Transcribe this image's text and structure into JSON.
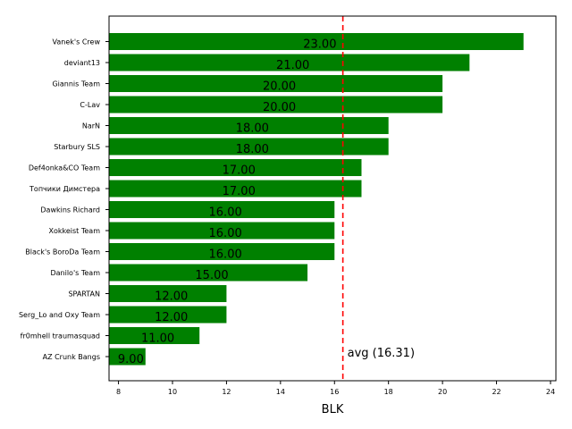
{
  "chart_data": {
    "type": "bar",
    "orientation": "horizontal",
    "categories": [
      "Vanek's Crew",
      "deviant13",
      "Giannis Team",
      "C-Lav",
      "NarN",
      "Starbury SLS",
      "Def4onka&CO Team",
      "Топчики Димстера",
      "Dawkins Richard",
      "Xokkeist Team",
      "Black's BoroDa Team",
      "Danilo's Team",
      "SPARTAN",
      "Serg_Lo and Oxy Team",
      "fr0mhell traumasquad",
      "AZ Crunk Bangs"
    ],
    "values": [
      23,
      21,
      20,
      20,
      18,
      18,
      17,
      17,
      16,
      16,
      16,
      15,
      12,
      12,
      11,
      9
    ],
    "value_labels": [
      "23.00",
      "21.00",
      "20.00",
      "20.00",
      "18.00",
      "18.00",
      "17.00",
      "17.00",
      "16.00",
      "16.00",
      "16.00",
      "15.00",
      "12.00",
      "12.00",
      "11.00",
      "9.00"
    ],
    "xlabel": "BLK",
    "xlim": [
      7.65,
      24.2
    ],
    "xticks": [
      8,
      10,
      12,
      14,
      16,
      18,
      20,
      22,
      24
    ],
    "grid": false,
    "bar_color": "#008000",
    "average": {
      "value": 16.31,
      "label": "avg (16.31)",
      "color": "#ff0000",
      "style": "dashed"
    }
  }
}
